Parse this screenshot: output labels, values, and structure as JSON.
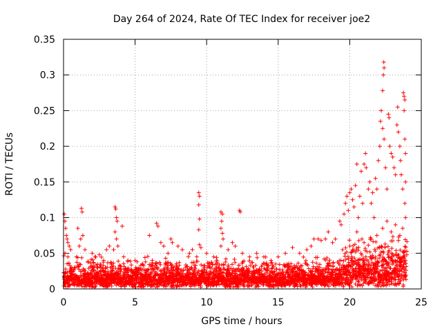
{
  "chart_data": {
    "type": "scatter",
    "title": "Day 264 of 2024, Rate Of TEC Index for receiver joe2",
    "xlabel": "GPS time / hours",
    "ylabel": "ROTI / TECUs",
    "xlim": [
      0,
      25
    ],
    "ylim": [
      0,
      0.35
    ],
    "xticks": [
      0,
      5,
      10,
      15,
      20,
      25
    ],
    "yticks": [
      0,
      0.05,
      0.1,
      0.15,
      0.2,
      0.25,
      0.3,
      0.35
    ],
    "xtick_labels": [
      "0",
      "5",
      "10",
      "15",
      "20",
      "25"
    ],
    "ytick_labels": [
      "0",
      "0.05",
      "0.1",
      "0.15",
      "0.2",
      "0.25",
      "0.3",
      "0.35"
    ],
    "grid": true,
    "marker": "+",
    "color": "#ff0000",
    "series": [
      {
        "name": "ROTI",
        "points": [
          [
            0.05,
            0.105
          ],
          [
            0.1,
            0.095
          ],
          [
            0.15,
            0.085
          ],
          [
            0.2,
            0.075
          ],
          [
            0.25,
            0.07
          ],
          [
            0.3,
            0.065
          ],
          [
            0.4,
            0.06
          ],
          [
            0.5,
            0.055
          ],
          [
            0.1,
            0.05
          ],
          [
            0.3,
            0.045
          ],
          [
            1.25,
            0.113
          ],
          [
            1.3,
            0.108
          ],
          [
            1.35,
            0.075
          ],
          [
            1.2,
            0.07
          ],
          [
            1.1,
            0.06
          ],
          [
            1.0,
            0.085
          ],
          [
            0.9,
            0.045
          ],
          [
            1.5,
            0.055
          ],
          [
            2.0,
            0.05
          ],
          [
            2.2,
            0.045
          ],
          [
            2.5,
            0.048
          ],
          [
            2.8,
            0.04
          ],
          [
            3.0,
            0.055
          ],
          [
            3.2,
            0.06
          ],
          [
            3.6,
            0.115
          ],
          [
            3.65,
            0.112
          ],
          [
            3.7,
            0.1
          ],
          [
            3.75,
            0.095
          ],
          [
            3.6,
            0.08
          ],
          [
            3.7,
            0.07
          ],
          [
            3.8,
            0.06
          ],
          [
            3.5,
            0.055
          ],
          [
            4.1,
            0.088
          ],
          [
            4.2,
            0.045
          ],
          [
            4.5,
            0.04
          ],
          [
            5.0,
            0.04
          ],
          [
            5.5,
            0.035
          ],
          [
            6.0,
            0.075
          ],
          [
            6.2,
            0.04
          ],
          [
            6.5,
            0.092
          ],
          [
            6.6,
            0.088
          ],
          [
            6.8,
            0.065
          ],
          [
            7.0,
            0.06
          ],
          [
            7.3,
            0.05
          ],
          [
            7.5,
            0.07
          ],
          [
            7.6,
            0.065
          ],
          [
            8.0,
            0.06
          ],
          [
            8.3,
            0.055
          ],
          [
            8.8,
            0.05
          ],
          [
            9.0,
            0.055
          ],
          [
            9.45,
            0.135
          ],
          [
            9.5,
            0.13
          ],
          [
            9.45,
            0.118
          ],
          [
            9.5,
            0.098
          ],
          [
            9.45,
            0.083
          ],
          [
            9.5,
            0.062
          ],
          [
            9.6,
            0.058
          ],
          [
            10.0,
            0.05
          ],
          [
            10.5,
            0.045
          ],
          [
            11.0,
            0.108
          ],
          [
            11.1,
            0.105
          ],
          [
            11.05,
            0.095
          ],
          [
            11.0,
            0.085
          ],
          [
            11.1,
            0.078
          ],
          [
            11.15,
            0.07
          ],
          [
            11.0,
            0.06
          ],
          [
            11.5,
            0.055
          ],
          [
            11.8,
            0.065
          ],
          [
            12.0,
            0.06
          ],
          [
            12.3,
            0.11
          ],
          [
            12.35,
            0.108
          ],
          [
            12.5,
            0.05
          ],
          [
            13.0,
            0.045
          ],
          [
            13.5,
            0.05
          ],
          [
            14.0,
            0.045
          ],
          [
            14.5,
            0.04
          ],
          [
            15.0,
            0.045
          ],
          [
            15.5,
            0.05
          ],
          [
            16.0,
            0.058
          ],
          [
            16.5,
            0.05
          ],
          [
            17.0,
            0.055
          ],
          [
            17.3,
            0.06
          ],
          [
            17.5,
            0.07
          ],
          [
            17.8,
            0.07
          ],
          [
            18.0,
            0.068
          ],
          [
            18.3,
            0.07
          ],
          [
            18.5,
            0.08
          ],
          [
            18.8,
            0.065
          ],
          [
            19.0,
            0.07
          ],
          [
            19.3,
            0.095
          ],
          [
            19.4,
            0.09
          ],
          [
            19.6,
            0.105
          ],
          [
            19.7,
            0.12
          ],
          [
            19.8,
            0.13
          ],
          [
            19.9,
            0.11
          ],
          [
            20.0,
            0.135
          ],
          [
            20.1,
            0.14
          ],
          [
            20.2,
            0.125
          ],
          [
            20.3,
            0.115
          ],
          [
            20.4,
            0.145
          ],
          [
            20.5,
            0.175
          ],
          [
            20.6,
            0.1
          ],
          [
            20.7,
            0.13
          ],
          [
            20.8,
            0.165
          ],
          [
            20.9,
            0.12
          ],
          [
            21.0,
            0.175
          ],
          [
            21.1,
            0.19
          ],
          [
            21.15,
            0.17
          ],
          [
            21.3,
            0.14
          ],
          [
            21.4,
            0.15
          ],
          [
            21.5,
            0.12
          ],
          [
            21.6,
            0.135
          ],
          [
            21.7,
            0.1
          ],
          [
            21.8,
            0.155
          ],
          [
            21.9,
            0.14
          ],
          [
            22.0,
            0.18
          ],
          [
            22.1,
            0.2
          ],
          [
            22.15,
            0.235
          ],
          [
            22.2,
            0.25
          ],
          [
            22.3,
            0.278
          ],
          [
            22.35,
            0.3
          ],
          [
            22.38,
            0.318
          ],
          [
            22.4,
            0.31
          ],
          [
            22.3,
            0.225
          ],
          [
            22.4,
            0.21
          ],
          [
            22.5,
            0.17
          ],
          [
            22.6,
            0.14
          ],
          [
            22.7,
            0.245
          ],
          [
            22.75,
            0.24
          ],
          [
            22.8,
            0.2
          ],
          [
            22.9,
            0.19
          ],
          [
            23.0,
            0.185
          ],
          [
            23.1,
            0.17
          ],
          [
            23.2,
            0.16
          ],
          [
            23.3,
            0.23
          ],
          [
            23.35,
            0.255
          ],
          [
            23.4,
            0.22
          ],
          [
            23.5,
            0.2
          ],
          [
            23.55,
            0.18
          ],
          [
            23.6,
            0.16
          ],
          [
            23.7,
            0.14
          ],
          [
            23.75,
            0.275
          ],
          [
            23.8,
            0.27
          ],
          [
            23.85,
            0.265
          ],
          [
            23.8,
            0.25
          ],
          [
            23.85,
            0.21
          ],
          [
            23.9,
            0.19
          ],
          [
            23.9,
            0.15
          ],
          [
            23.85,
            0.12
          ],
          [
            23.9,
            0.1
          ],
          [
            23.7,
            0.085
          ],
          [
            23.5,
            0.075
          ],
          [
            23.2,
            0.09
          ],
          [
            22.9,
            0.08
          ],
          [
            22.6,
            0.095
          ],
          [
            22.3,
            0.085
          ],
          [
            21.9,
            0.075
          ],
          [
            21.5,
            0.07
          ],
          [
            21.0,
            0.065
          ],
          [
            20.5,
            0.08
          ],
          [
            20.0,
            0.06
          ],
          [
            19.5,
            0.055
          ]
        ]
      }
    ]
  }
}
